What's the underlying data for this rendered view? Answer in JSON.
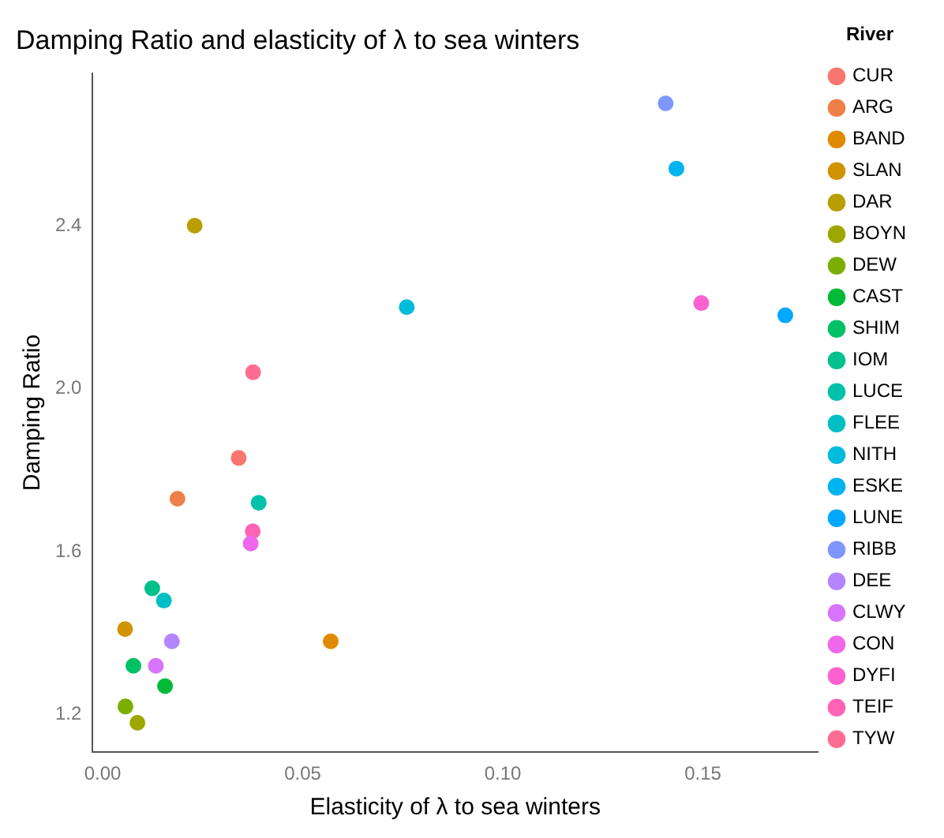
{
  "chart_data": {
    "type": "scatter",
    "title": "Damping Ratio and elasticity of λ to sea winters",
    "xlabel": "Elasticity of λ to sea winters",
    "ylabel": "Damping Ratio",
    "legend_title": "River",
    "legend": "right",
    "grid": false,
    "marker": "circle",
    "xlim": [
      -0.0025,
      0.1787
    ],
    "xticks": [
      {
        "value": 0,
        "label": "0.00"
      },
      {
        "value": 0.05,
        "label": "0.05"
      },
      {
        "value": 0.1,
        "label": "0.10"
      },
      {
        "value": 0.15,
        "label": "0.15"
      }
    ],
    "ylim": [
      1.108,
      2.774
    ],
    "yticks": [
      {
        "value": 1.2,
        "label": "1.2"
      },
      {
        "value": 1.6,
        "label": "1.6"
      },
      {
        "value": 2,
        "label": "2.0"
      },
      {
        "value": 2.4,
        "label": "2.4"
      }
    ],
    "series": [
      {
        "name": "CUR",
        "color": "#f8766d",
        "x": [
          0.034
        ],
        "values": [
          1.83
        ]
      },
      {
        "name": "ARG",
        "color": "#ef7f49",
        "x": [
          0.0187
        ],
        "values": [
          1.73
        ]
      },
      {
        "name": "BAND",
        "color": "#e18a00",
        "x": [
          0.057
        ],
        "values": [
          1.38
        ]
      },
      {
        "name": "SLAN",
        "color": "#cf9400",
        "x": [
          0.0056
        ],
        "values": [
          1.41
        ]
      },
      {
        "name": "DAR",
        "color": "#b89e00",
        "x": [
          0.023
        ],
        "values": [
          2.4
        ]
      },
      {
        "name": "BOYN",
        "color": "#9ea700",
        "x": [
          0.0087
        ],
        "values": [
          1.18
        ]
      },
      {
        "name": "DEW",
        "color": "#7cae00",
        "x": [
          0.0057
        ],
        "values": [
          1.22
        ]
      },
      {
        "name": "CAST",
        "color": "#00ba38",
        "x": [
          0.0156
        ],
        "values": [
          1.27
        ]
      },
      {
        "name": "SHIM",
        "color": "#00c066",
        "x": [
          0.0077
        ],
        "values": [
          1.32
        ]
      },
      {
        "name": "IOM",
        "color": "#00c08b",
        "x": [
          0.0124
        ],
        "values": [
          1.51
        ]
      },
      {
        "name": "LUCE",
        "color": "#00c1aa",
        "x": [
          0.039
        ],
        "values": [
          1.72
        ]
      },
      {
        "name": "FLEE",
        "color": "#00bfc4",
        "x": [
          0.0153
        ],
        "values": [
          1.48
        ]
      },
      {
        "name": "NITH",
        "color": "#00bbdb",
        "x": [
          0.076
        ],
        "values": [
          2.2
        ]
      },
      {
        "name": "ESKE",
        "color": "#00b4f0",
        "x": [
          0.1434
        ],
        "values": [
          2.54
        ]
      },
      {
        "name": "LUNE",
        "color": "#00a9ff",
        "x": [
          0.1706
        ],
        "values": [
          2.18
        ]
      },
      {
        "name": "RIBB",
        "color": "#7f96ff",
        "x": [
          0.1407
        ],
        "values": [
          2.7
        ]
      },
      {
        "name": "DEE",
        "color": "#b385ff",
        "x": [
          0.0173
        ],
        "values": [
          1.38
        ]
      },
      {
        "name": "CLWY",
        "color": "#d874fd",
        "x": [
          0.0133
        ],
        "values": [
          1.32
        ]
      },
      {
        "name": "CON",
        "color": "#ef67eb",
        "x": [
          0.037
        ],
        "values": [
          1.62
        ]
      },
      {
        "name": "DYFI",
        "color": "#fd61d1",
        "x": [
          0.1496
        ],
        "values": [
          2.21
        ]
      },
      {
        "name": "TEIF",
        "color": "#ff63b6",
        "x": [
          0.0375
        ],
        "values": [
          1.65
        ]
      },
      {
        "name": "TYW",
        "color": "#ff6c91",
        "x": [
          0.0376
        ],
        "values": [
          2.04
        ]
      }
    ]
  }
}
